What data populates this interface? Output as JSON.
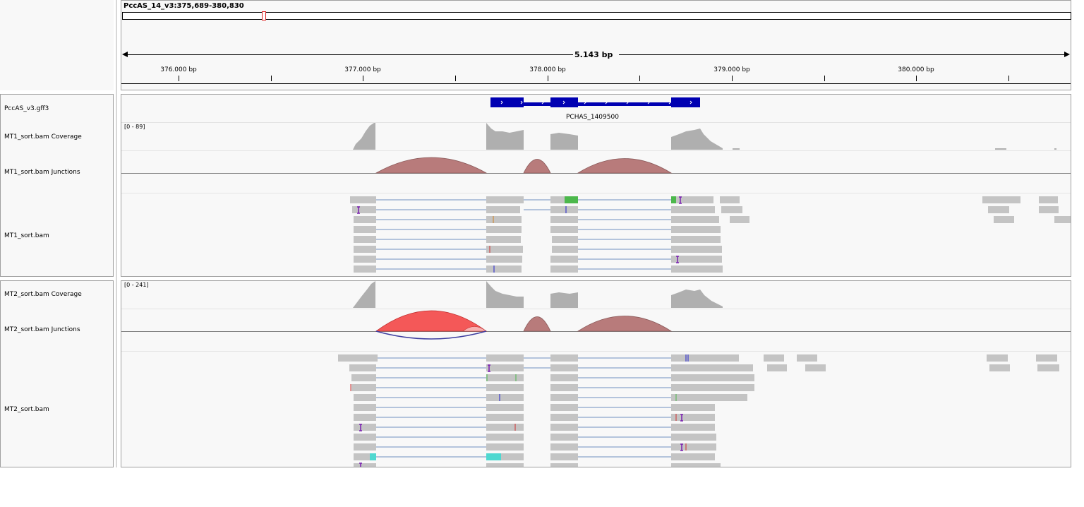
{
  "header": {
    "locus": "PccAS_14_v3:375,689-380,830",
    "span": "5.143 bp",
    "ticks": [
      {
        "label": "376.000 bp",
        "major": true
      },
      {
        "label": "377.000 bp",
        "major": true
      },
      {
        "label": "378.000 bp",
        "major": true
      },
      {
        "label": "379.000 bp",
        "major": true
      },
      {
        "label": "380.000 bp",
        "major": true
      }
    ]
  },
  "tracks": {
    "gff": {
      "name": "PccAS_v3.gff3",
      "gene": "PCHAS_1409500"
    },
    "mt1_cov": {
      "name": "MT1_sort.bam Coverage",
      "range": "[0 - 89]"
    },
    "mt1_junc": {
      "name": "MT1_sort.bam Junctions"
    },
    "mt1_bam": {
      "name": "MT1_sort.bam"
    },
    "mt2_cov": {
      "name": "MT2_sort.bam Coverage",
      "range": "[0 - 241]"
    },
    "mt2_junc": {
      "name": "MT2_sort.bam Junctions"
    },
    "mt2_bam": {
      "name": "MT2_sort.bam"
    }
  },
  "colors": {
    "gene": "#0000b2",
    "coverage": "#afafaf",
    "junction": "#b87b7b",
    "junction_strong": "#f45858",
    "junction_minus": "#3f3fa0",
    "read": "#c4c4c4",
    "intron": "#7090c0",
    "insertion": "#7a1fb0",
    "soft_clip_green": "#4cb84c",
    "soft_clip_cyan": "#4fd8d0",
    "region_marker": "#e02020"
  }
}
